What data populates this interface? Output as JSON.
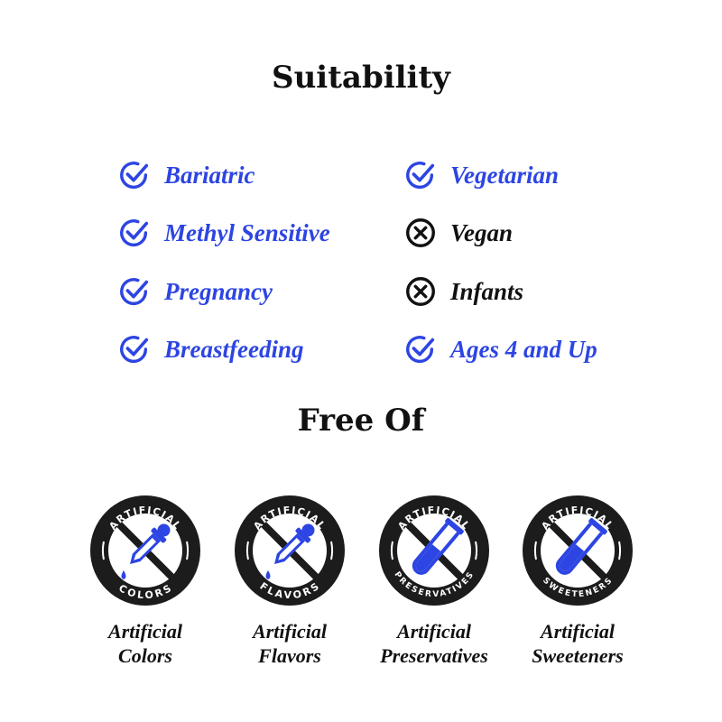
{
  "suitability": {
    "title": "Suitability",
    "items": [
      {
        "label": "Bariatric",
        "status": "yes"
      },
      {
        "label": "Methyl Sensitive",
        "status": "yes"
      },
      {
        "label": "Pregnancy",
        "status": "yes"
      },
      {
        "label": "Breastfeeding",
        "status": "yes"
      },
      {
        "label": "Vegetarian",
        "status": "yes"
      },
      {
        "label": "Vegan",
        "status": "no"
      },
      {
        "label": "Infants",
        "status": "no"
      },
      {
        "label": "Ages 4 and Up",
        "status": "yes"
      }
    ]
  },
  "free_of": {
    "title": "Free Of",
    "badges": [
      {
        "top": "ARTIFICIAL",
        "bottom": "COLORS",
        "icon": "dropper-icon",
        "label1": "Artificial",
        "label2": "Colors"
      },
      {
        "top": "ARTIFICIAL",
        "bottom": "FLAVORS",
        "icon": "dropper-icon",
        "label1": "Artificial",
        "label2": "Flavors"
      },
      {
        "top": "ARTIFICIAL",
        "bottom": "PRESERVATIVES",
        "icon": "test-tube-icon",
        "label1": "Artificial",
        "label2": "Preservatives"
      },
      {
        "top": "ARTIFICIAL",
        "bottom": "SWEETENERS",
        "icon": "test-tube-icon",
        "label1": "Artificial",
        "label2": "Sweeteners"
      }
    ]
  },
  "colors": {
    "accent": "#2d45e2",
    "text": "#111111"
  }
}
